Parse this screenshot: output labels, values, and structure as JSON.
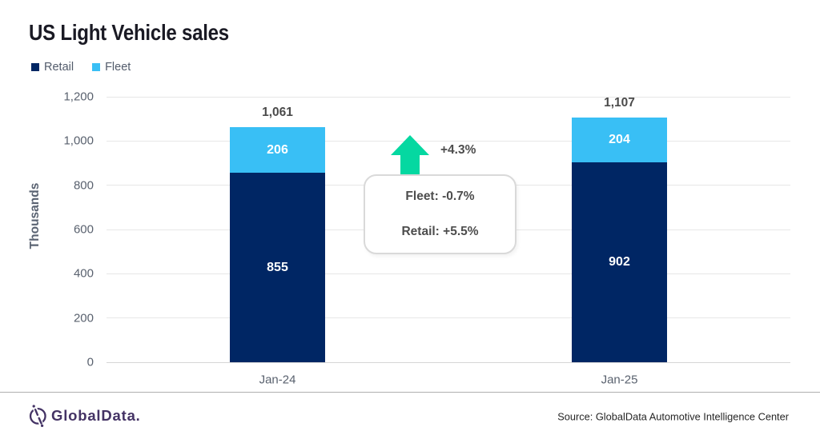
{
  "title": "US Light Vehicle sales",
  "legend": [
    {
      "label": "Retail",
      "color": "#002664"
    },
    {
      "label": "Fleet",
      "color": "#39bff5"
    }
  ],
  "chart_data": {
    "type": "bar",
    "stacked": true,
    "title": "US Light Vehicle sales",
    "ylabel": "Thousands",
    "xlabel": "",
    "categories": [
      "Jan-24",
      "Jan-25"
    ],
    "series": [
      {
        "name": "Retail",
        "color": "#002664",
        "values": [
          855,
          902
        ]
      },
      {
        "name": "Fleet",
        "color": "#39bff5",
        "values": [
          206,
          204
        ]
      }
    ],
    "totals": [
      1061,
      1107
    ],
    "total_labels": [
      "1,061",
      "1,107"
    ],
    "ylim": [
      0,
      1200
    ],
    "ytick_step": 200,
    "ytick_labels": [
      "0",
      "200",
      "400",
      "600",
      "800",
      "1,000",
      "1,200"
    ],
    "grid": true,
    "legend_position": "top-left"
  },
  "annotations": {
    "arrow_label": "+4.3%",
    "arrow_color": "#05d8a1",
    "callout_lines": [
      "Fleet: -0.7%",
      "Retail: +5.5%"
    ]
  },
  "footer": {
    "brand": "GlobalData.",
    "brand_color": "#443365",
    "source": "Source: GlobalData Automotive Intelligence Center"
  }
}
